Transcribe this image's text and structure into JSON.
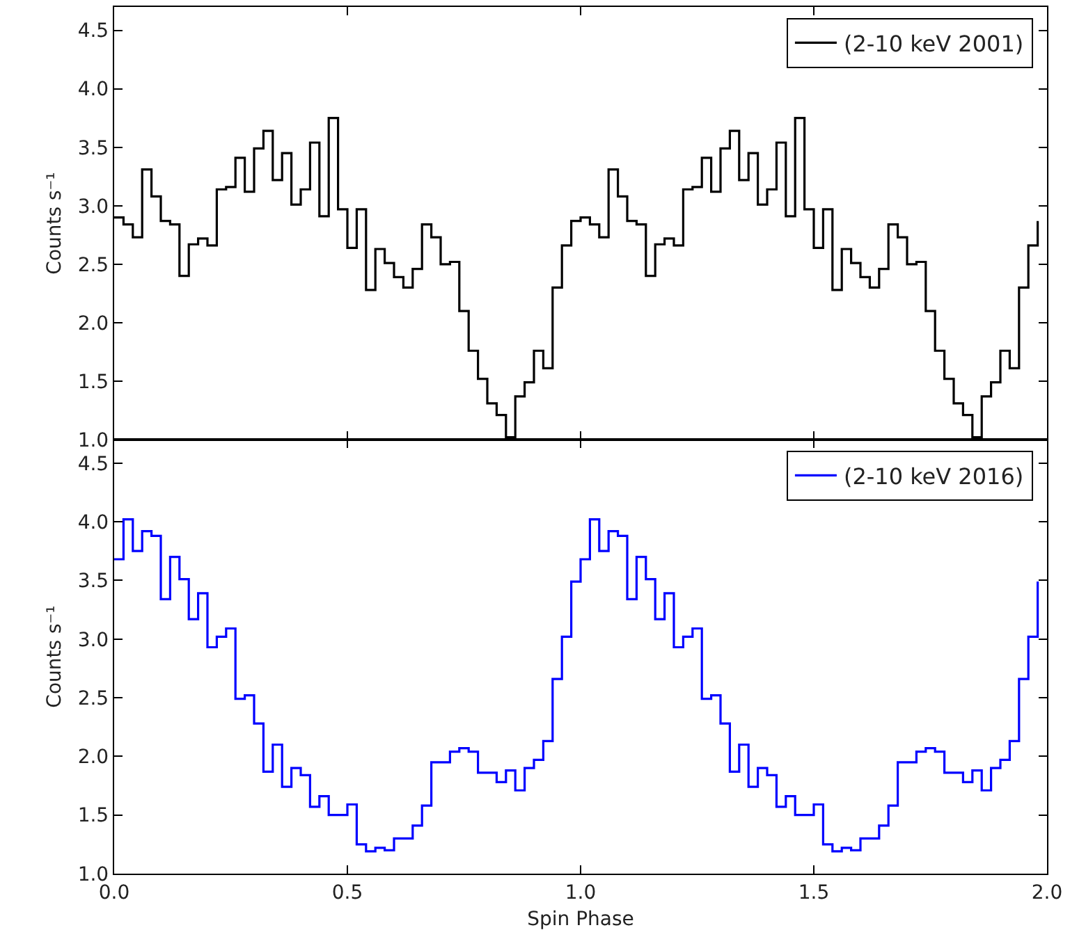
{
  "chart_data": [
    {
      "type": "step",
      "ylabel": "Counts s⁻¹",
      "xlim": [
        0,
        2
      ],
      "ylim": [
        1.0,
        4.7
      ],
      "xticks": [
        {
          "value": 0,
          "label": null
        },
        {
          "value": 0.5,
          "label": null
        },
        {
          "value": 1,
          "label": null
        },
        {
          "value": 1.5,
          "label": null
        },
        {
          "value": 2,
          "label": null
        }
      ],
      "yticks": [
        {
          "value": 1,
          "label": "1.0"
        },
        1.5,
        {
          "value": 2,
          "label": "2.0"
        },
        2.5,
        {
          "value": 3,
          "label": "3.0"
        },
        3.5,
        {
          "value": 4,
          "label": "4.0"
        },
        4.5
      ],
      "tick_labels": "y",
      "legend": "top right",
      "x": [
        0,
        0.02,
        0.04,
        0.06,
        0.08,
        0.1,
        0.12,
        0.14,
        0.16,
        0.18,
        0.2,
        0.22,
        0.24,
        0.26,
        0.28,
        0.3,
        0.32,
        0.34,
        0.36,
        0.38,
        0.4,
        0.42,
        0.44,
        0.46,
        0.48,
        0.5,
        0.52,
        0.54,
        0.56,
        0.58,
        0.6,
        0.62,
        0.64,
        0.66,
        0.68,
        0.7,
        0.72,
        0.74,
        0.76,
        0.78,
        0.8,
        0.82,
        0.84,
        0.86,
        0.88,
        0.9,
        0.92,
        0.94,
        0.96,
        0.98,
        1,
        1.02,
        1.04,
        1.06,
        1.08,
        1.1,
        1.12,
        1.14,
        1.16,
        1.18,
        1.2,
        1.22,
        1.24,
        1.26,
        1.28,
        1.3,
        1.32,
        1.34,
        1.36,
        1.38,
        1.4,
        1.42,
        1.44,
        1.46,
        1.48,
        1.5,
        1.52,
        1.54,
        1.56,
        1.58,
        1.6,
        1.62,
        1.64,
        1.66,
        1.68,
        1.7,
        1.72,
        1.74,
        1.76,
        1.78,
        1.8,
        1.82,
        1.84,
        1.86,
        1.88,
        1.9,
        1.92,
        1.94,
        1.96,
        1.98
      ],
      "series": [
        {
          "name": "(2-10 keV 2001)",
          "color": "#000000",
          "values": [
            2.9,
            2.84,
            2.73,
            3.31,
            3.08,
            2.87,
            2.84,
            2.4,
            2.67,
            2.72,
            2.66,
            3.14,
            3.16,
            3.41,
            3.12,
            3.49,
            3.64,
            3.22,
            3.45,
            3.01,
            3.14,
            3.54,
            2.91,
            3.75,
            2.97,
            2.64,
            2.97,
            2.28,
            2.63,
            2.51,
            2.39,
            2.3,
            2.46,
            2.84,
            2.73,
            2.5,
            2.52,
            2.1,
            1.76,
            1.52,
            1.31,
            1.21,
            1.02,
            1.37,
            1.49,
            1.76,
            1.61,
            2.3,
            2.66,
            2.87,
            2.9,
            2.84,
            2.73,
            3.31,
            3.08,
            2.87,
            2.84,
            2.4,
            2.67,
            2.72,
            2.66,
            3.14,
            3.16,
            3.41,
            3.12,
            3.49,
            3.64,
            3.22,
            3.45,
            3.01,
            3.14,
            3.54,
            2.91,
            3.75,
            2.97,
            2.64,
            2.97,
            2.28,
            2.63,
            2.51,
            2.39,
            2.3,
            2.46,
            2.84,
            2.73,
            2.5,
            2.52,
            2.1,
            1.76,
            1.52,
            1.31,
            1.21,
            1.02,
            1.37,
            1.49,
            1.76,
            1.61,
            2.3,
            2.66,
            2.87
          ]
        }
      ]
    },
    {
      "type": "step",
      "ylabel": "Counts s⁻¹",
      "xlabel": "Spin Phase",
      "xlim": [
        0,
        2
      ],
      "ylim": [
        1.0,
        4.7
      ],
      "xticks": [
        {
          "value": 0,
          "label": "0.0"
        },
        {
          "value": 0.5,
          "label": "0.5"
        },
        {
          "value": 1,
          "label": "1.0"
        },
        {
          "value": 1.5,
          "label": "1.5"
        },
        {
          "value": 2,
          "label": "2.0"
        }
      ],
      "yticks": [
        {
          "value": 1,
          "label": "1.0"
        },
        1.5,
        {
          "value": 2,
          "label": "2.0"
        },
        2.5,
        {
          "value": 3,
          "label": "3.0"
        },
        3.5,
        {
          "value": 4,
          "label": "4.0"
        },
        4.5
      ],
      "legend": "top right",
      "x": [
        0,
        0.02,
        0.04,
        0.06,
        0.08,
        0.1,
        0.12,
        0.14,
        0.16,
        0.18,
        0.2,
        0.22,
        0.24,
        0.26,
        0.28,
        0.3,
        0.32,
        0.34,
        0.36,
        0.38,
        0.4,
        0.42,
        0.44,
        0.46,
        0.48,
        0.5,
        0.52,
        0.54,
        0.56,
        0.58,
        0.6,
        0.62,
        0.64,
        0.66,
        0.68,
        0.7,
        0.72,
        0.74,
        0.76,
        0.78,
        0.8,
        0.82,
        0.84,
        0.86,
        0.88,
        0.9,
        0.92,
        0.94,
        0.96,
        0.98,
        1,
        1.02,
        1.04,
        1.06,
        1.08,
        1.1,
        1.12,
        1.14,
        1.16,
        1.18,
        1.2,
        1.22,
        1.24,
        1.26,
        1.28,
        1.3,
        1.32,
        1.34,
        1.36,
        1.38,
        1.4,
        1.42,
        1.44,
        1.46,
        1.48,
        1.5,
        1.52,
        1.54,
        1.56,
        1.58,
        1.6,
        1.62,
        1.64,
        1.66,
        1.68,
        1.7,
        1.72,
        1.74,
        1.76,
        1.78,
        1.8,
        1.82,
        1.84,
        1.86,
        1.88,
        1.9,
        1.92,
        1.94,
        1.96,
        1.98
      ],
      "series": [
        {
          "name": "(2-10 keV 2016)",
          "color": "#0000ff",
          "values": [
            3.68,
            4.02,
            3.75,
            3.92,
            3.88,
            3.34,
            3.7,
            3.51,
            3.17,
            3.39,
            2.93,
            3.02,
            3.09,
            2.49,
            2.52,
            2.28,
            1.87,
            2.1,
            1.74,
            1.9,
            1.84,
            1.57,
            1.66,
            1.5,
            1.5,
            1.59,
            1.25,
            1.19,
            1.22,
            1.2,
            1.3,
            1.3,
            1.41,
            1.58,
            1.95,
            1.95,
            2.04,
            2.07,
            2.04,
            1.86,
            1.86,
            1.78,
            1.88,
            1.71,
            1.9,
            1.97,
            2.13,
            2.66,
            3.02,
            3.49,
            3.68,
            4.02,
            3.75,
            3.92,
            3.88,
            3.34,
            3.7,
            3.51,
            3.17,
            3.39,
            2.93,
            3.02,
            3.09,
            2.49,
            2.52,
            2.28,
            1.87,
            2.1,
            1.74,
            1.9,
            1.84,
            1.57,
            1.66,
            1.5,
            1.5,
            1.59,
            1.25,
            1.19,
            1.22,
            1.2,
            1.3,
            1.3,
            1.41,
            1.58,
            1.95,
            1.95,
            2.04,
            2.07,
            2.04,
            1.86,
            1.86,
            1.78,
            1.88,
            1.71,
            1.9,
            1.97,
            2.13,
            2.66,
            3.02,
            3.49
          ]
        }
      ]
    }
  ]
}
